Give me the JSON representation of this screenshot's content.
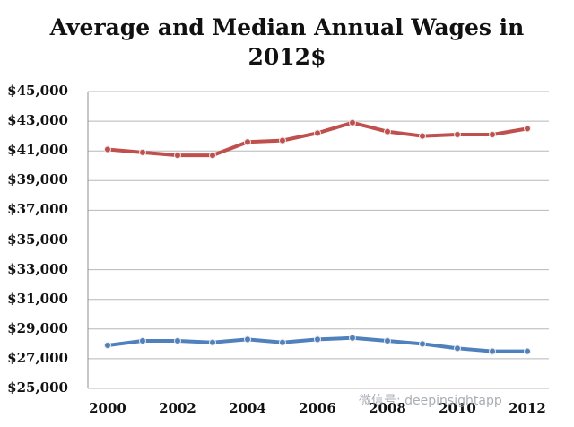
{
  "chart_data": {
    "type": "line",
    "title": "Average and Median Annual Wages in 2012$",
    "title_lines": [
      "Average and Median Annual Wages in",
      "2012$"
    ],
    "x": [
      2000,
      2001,
      2002,
      2003,
      2004,
      2005,
      2006,
      2007,
      2008,
      2009,
      2010,
      2011,
      2012
    ],
    "xticks": [
      "2000",
      "2002",
      "2004",
      "2006",
      "2008",
      "2010",
      "2012"
    ],
    "xtick_values": [
      2000,
      2002,
      2004,
      2006,
      2008,
      2010,
      2012
    ],
    "yticks": [
      "$45,000",
      "$43,000",
      "$41,000",
      "$39,000",
      "$37,000",
      "$35,000",
      "$33,000",
      "$31,000",
      "$29,000",
      "$27,000",
      "$25,000"
    ],
    "ytick_values": [
      45000,
      43000,
      41000,
      39000,
      37000,
      35000,
      33000,
      31000,
      29000,
      27000,
      25000
    ],
    "ylim": [
      25000,
      45000
    ],
    "xlim": [
      2000,
      2012
    ],
    "grid": true,
    "series": [
      {
        "values": [
          41100,
          40900,
          40700,
          40700,
          41600,
          41700,
          42200,
          42900,
          42300,
          42000,
          42100,
          42100,
          42500
        ],
        "color": "#c0504d"
      },
      {
        "values": [
          27900,
          28200,
          28200,
          28100,
          28300,
          28100,
          28300,
          28400,
          28200,
          28000,
          27700,
          27500,
          27500
        ],
        "color": "#4f81bd"
      }
    ]
  },
  "watermark": "微信号: deepinsightapp"
}
